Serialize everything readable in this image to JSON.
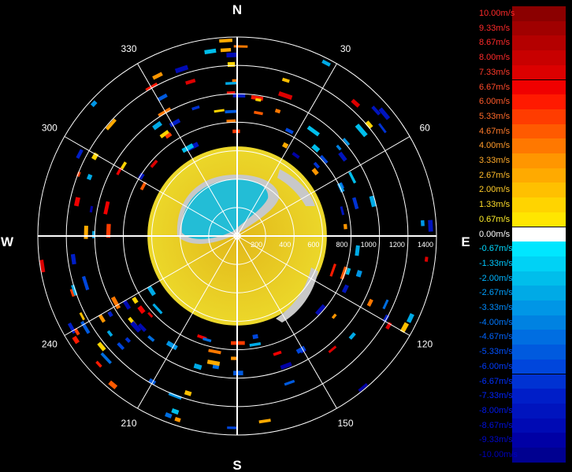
{
  "chart_data": {
    "type": "polar-heatmap",
    "title": "",
    "compass": {
      "north": "N",
      "east": "E",
      "south": "S",
      "west": "W"
    },
    "azimuth_labels": [
      {
        "angle": 30,
        "label": "30"
      },
      {
        "angle": 60,
        "label": "60"
      },
      {
        "angle": 120,
        "label": "120"
      },
      {
        "angle": 150,
        "label": "150"
      },
      {
        "angle": 210,
        "label": "210"
      },
      {
        "angle": 240,
        "label": "240"
      },
      {
        "angle": 300,
        "label": "300"
      },
      {
        "angle": 330,
        "label": "330"
      }
    ],
    "range_rings": [
      200,
      400,
      600,
      800,
      1000,
      1200,
      1400
    ],
    "range_labels": [
      "200",
      "400",
      "600",
      "800",
      "1000",
      "1200",
      "1400"
    ],
    "max_range": 1400,
    "colorbar": {
      "labels": [
        "10.00m/s",
        "9.33m/s",
        "8.67m/s",
        "8.00m/s",
        "7.33m/s",
        "6.67m/s",
        "6.00m/s",
        "5.33m/s",
        "4.67m/s",
        "4.00m/s",
        "3.33m/s",
        "2.67m/s",
        "2.00m/s",
        "1.33m/s",
        "0.67m/s",
        "0.00m/s",
        "-0.67m/s",
        "-1.33m/s",
        "-2.00m/s",
        "-2.67m/s",
        "-3.33m/s",
        "-4.00m/s",
        "-4.67m/s",
        "-5.33m/s",
        "-6.00m/s",
        "-6.67m/s",
        "-7.33m/s",
        "-8.00m/s",
        "-8.67m/s",
        "-9.33m/s",
        "-10.00m/s"
      ],
      "colors": [
        "#8b0000",
        "#a00000",
        "#b40000",
        "#c80000",
        "#dc0000",
        "#f00000",
        "#ff1a00",
        "#ff3c00",
        "#ff5a00",
        "#ff7800",
        "#ff9600",
        "#ffaa00",
        "#ffc000",
        "#ffd400",
        "#ffe600",
        "#ffffff",
        "#00e6ff",
        "#00d2f5",
        "#00beeb",
        "#00aae6",
        "#0096e6",
        "#0082e1",
        "#006ee1",
        "#005ade",
        "#0046dc",
        "#0032d2",
        "#001ec8",
        "#0014be",
        "#000ab4",
        "#0000a5",
        "#000090"
      ],
      "label_colors": [
        "#ff2a2a",
        "#ff2a2a",
        "#ff2a2a",
        "#ff2a2a",
        "#ff3a2a",
        "#ff4a2a",
        "#ff5a2a",
        "#ff6a2a",
        "#ff7a2a",
        "#ff9a2a",
        "#ffaa2a",
        "#ffbb2a",
        "#ffcc2a",
        "#ffdd2a",
        "#ffee2a",
        "#ffffff",
        "#00d8ff",
        "#00c8ff",
        "#00b4ff",
        "#00a0ff",
        "#008cff",
        "#0078ff",
        "#0064ff",
        "#0050ff",
        "#003cff",
        "#0030ff",
        "#0024ff",
        "#0018ee",
        "#0010dd",
        "#0008cc",
        "#0000bb"
      ]
    },
    "colors": {
      "inner_positive": "#e9cf1c",
      "inner_negative": "#23bdd6",
      "no_data": "#c8c8c8",
      "grid": "#ffffff",
      "background": "#000000"
    }
  }
}
